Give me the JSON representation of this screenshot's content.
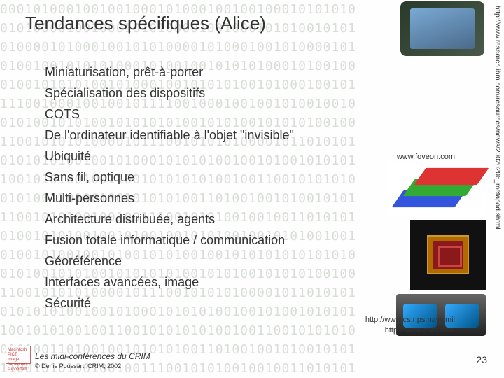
{
  "title": "Tendances spécifiques (Alice)",
  "bullets": [
    "Miniaturisation, prêt-à-porter",
    "Spécialisation des dispositifs",
    "COTS",
    "De l'ordinateur identifiable à l'objet \"invisible\"",
    "Ubiquité",
    "Sans fil, optique",
    "Multi-personnes",
    "Architecture distribuée, agents",
    "Fusion totale informatique / communication",
    "Géoréférence",
    "Interfaces avancées, image",
    "Sécurité"
  ],
  "vertical_url": "http://www.research.ibm.com/resources/news/20020206_metapad.shtml",
  "captions": {
    "foveon": "www.foveon.com",
    "bottom": "http://www.cs.nps.navy.mil\nhttp://www.mvis.com"
  },
  "footer": {
    "conf": "Les midi-conférences du CRIM",
    "copy": "© Denis Poussart, CRIM, 2002",
    "icon_text": "Macintosh PICT image format not supported"
  },
  "page_number": "23",
  "binary_rows": [
    "0001010001001001000101000100100100010101010",
    "0101000010010001010100001001000101010010101",
    "0100001010001001010100001010001001010000101",
    "0100100101010100010100100101010100010100100",
    "0100101010100101000100101010100101000100101",
    "1110010001001001011110010001001001010010010",
    "0101001010100101010101001010100101010100100",
    "1100101010100001011100101010100001011010101",
    "0101010100100101000101010100100101001010101",
    "1001010100100110010101010100100110010101010",
    "0101001101001001010101001101001001010010101",
    "1100101010010010011100101010010010011010101",
    "0100101010010010100100101010010010101001001",
    "0100101001001010010101001001010101010101010",
    "0101001010100101010101001010100101010100100",
    "1100101010100001011100101010100001011010101",
    "0101010100100101000101010100100101001010101",
    "1001010100100110010101010100100110010101010",
    "0101001101001001010101001101001001010010101",
    "1100101010010010011100101010010010011010101"
  ]
}
